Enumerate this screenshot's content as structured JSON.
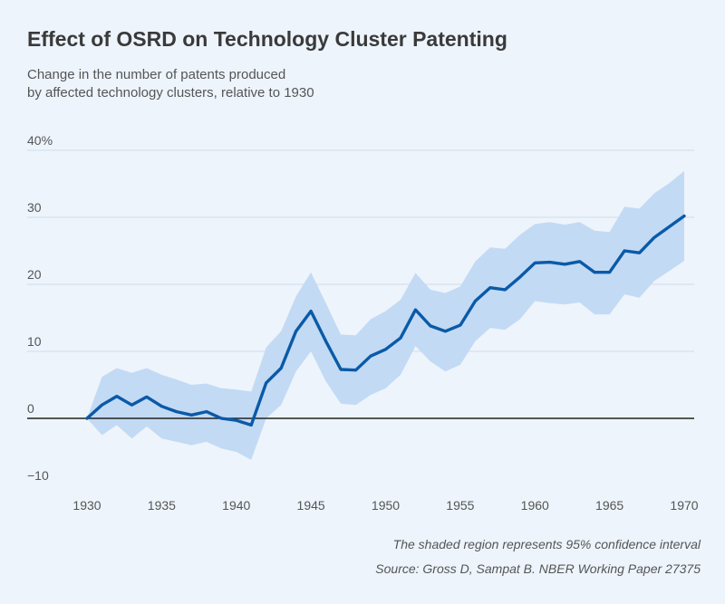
{
  "title": "Effect of OSRD on Technology Cluster Patenting",
  "subtitle_lines": [
    "Change in the number of patents produced",
    "by affected technology clusters, relative to 1930"
  ],
  "notes": {
    "confidence": "The shaded region represents 95% confidence interval",
    "source": "Source: Gross D, Sampat B. NBER Working Paper 27375"
  },
  "colors": {
    "line": "#0a5aa8",
    "band": "#c3daf4",
    "grid": "#cfdbe8",
    "zero": "#222222",
    "background": "#edf4fc"
  },
  "chart_data": {
    "type": "line",
    "xlim": [
      1930,
      1970
    ],
    "ylim": [
      -10,
      40
    ],
    "x_ticks": [
      1930,
      1935,
      1940,
      1945,
      1950,
      1955,
      1960,
      1965,
      1970
    ],
    "y_ticks": [
      {
        "value": 40,
        "label": "40%"
      },
      {
        "value": 30,
        "label": "30"
      },
      {
        "value": 20,
        "label": "20"
      },
      {
        "value": 10,
        "label": "10"
      },
      {
        "value": 0,
        "label": "0"
      },
      {
        "value": -10,
        "label": "−10"
      }
    ],
    "grid": true,
    "x": [
      1930,
      1931,
      1932,
      1933,
      1934,
      1935,
      1936,
      1937,
      1938,
      1939,
      1940,
      1941,
      1942,
      1943,
      1944,
      1945,
      1946,
      1947,
      1948,
      1949,
      1950,
      1951,
      1952,
      1953,
      1954,
      1955,
      1956,
      1957,
      1958,
      1959,
      1960,
      1961,
      1962,
      1963,
      1964,
      1965,
      1966,
      1967,
      1968,
      1969,
      1970
    ],
    "series": [
      {
        "values": [
          0,
          2,
          3.3,
          2,
          3.2,
          1.8,
          1,
          0.5,
          1,
          0,
          -0.3,
          -1,
          5.3,
          7.5,
          13,
          16,
          11.5,
          7.3,
          7.2,
          9.3,
          10.3,
          12,
          16.2,
          13.8,
          13,
          13.9,
          17.5,
          19.5,
          19.2,
          21.1,
          23.2,
          23.3,
          23,
          23.4,
          21.8,
          21.8,
          25,
          24.7,
          27,
          28.6,
          30.2
        ],
        "lower": [
          0,
          -2.5,
          -1,
          -3,
          -1.2,
          -3,
          -3.5,
          -4,
          -3.5,
          -4.5,
          -5,
          -6.2,
          0,
          2,
          7,
          10,
          5.5,
          2.2,
          2,
          3.5,
          4.5,
          6.5,
          10.8,
          8.5,
          7,
          8,
          11.5,
          13.5,
          13.2,
          14.8,
          17.5,
          17.2,
          17,
          17.3,
          15.5,
          15.5,
          18.5,
          18,
          20.5,
          22,
          23.5
        ],
        "upper": [
          0,
          6.2,
          7.5,
          6.8,
          7.5,
          6.5,
          5.8,
          5,
          5.2,
          4.5,
          4.3,
          4,
          10.6,
          13,
          18.2,
          21.8,
          17.2,
          12.5,
          12.4,
          14.8,
          16,
          17.7,
          21.7,
          19.2,
          18.7,
          19.7,
          23.4,
          25.5,
          25.3,
          27.4,
          29,
          29.3,
          28.9,
          29.3,
          28,
          27.8,
          31.6,
          31.3,
          33.6,
          35.1,
          36.9
        ]
      }
    ]
  }
}
